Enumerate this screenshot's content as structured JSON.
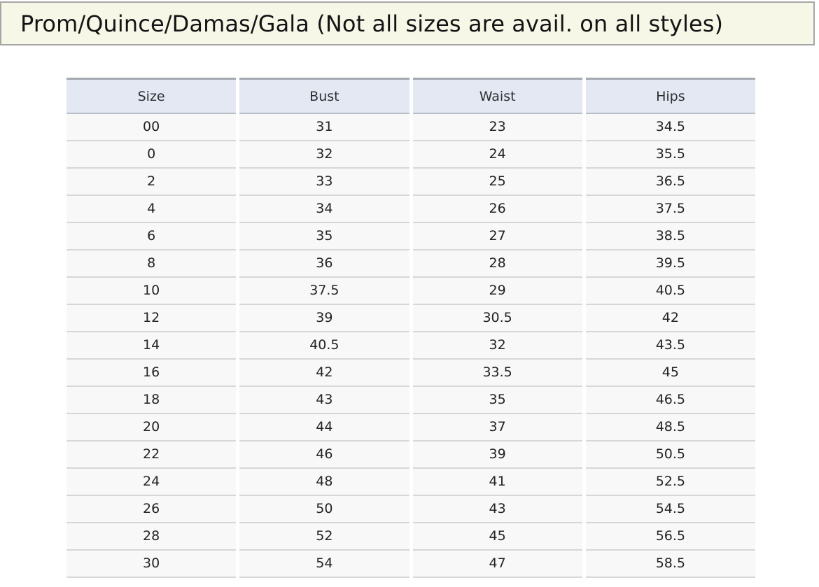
{
  "header": {
    "title": "Prom/Quince/Damas/Gala (Not all sizes are avail. on all styles)"
  },
  "table": {
    "columns": [
      "Size",
      "Bust",
      "Waist",
      "Hips"
    ],
    "rows": [
      [
        "00",
        "31",
        "23",
        "34.5"
      ],
      [
        "0",
        "32",
        "24",
        "35.5"
      ],
      [
        "2",
        "33",
        "25",
        "36.5"
      ],
      [
        "4",
        "34",
        "26",
        "37.5"
      ],
      [
        "6",
        "35",
        "27",
        "38.5"
      ],
      [
        "8",
        "36",
        "28",
        "39.5"
      ],
      [
        "10",
        "37.5",
        "29",
        "40.5"
      ],
      [
        "12",
        "39",
        "30.5",
        "42"
      ],
      [
        "14",
        "40.5",
        "32",
        "43.5"
      ],
      [
        "16",
        "42",
        "33.5",
        "45"
      ],
      [
        "18",
        "43",
        "35",
        "46.5"
      ],
      [
        "20",
        "44",
        "37",
        "48.5"
      ],
      [
        "22",
        "46",
        "39",
        "50.5"
      ],
      [
        "24",
        "48",
        "41",
        "52.5"
      ],
      [
        "26",
        "50",
        "43",
        "54.5"
      ],
      [
        "28",
        "52",
        "45",
        "56.5"
      ],
      [
        "30",
        "54",
        "47",
        "58.5"
      ]
    ]
  },
  "colors": {
    "banner_bg": "#f7f7e8",
    "banner_border": "#a6a6a6",
    "header_row_bg": "#e3e8f2",
    "header_top_border": "#a4a9b1",
    "header_bottom_border": "#b9bfca",
    "row_bg": "#f8f8f8",
    "row_separator": "#d7d7d7",
    "page_bg": "#ffffff",
    "text": "#232323"
  }
}
